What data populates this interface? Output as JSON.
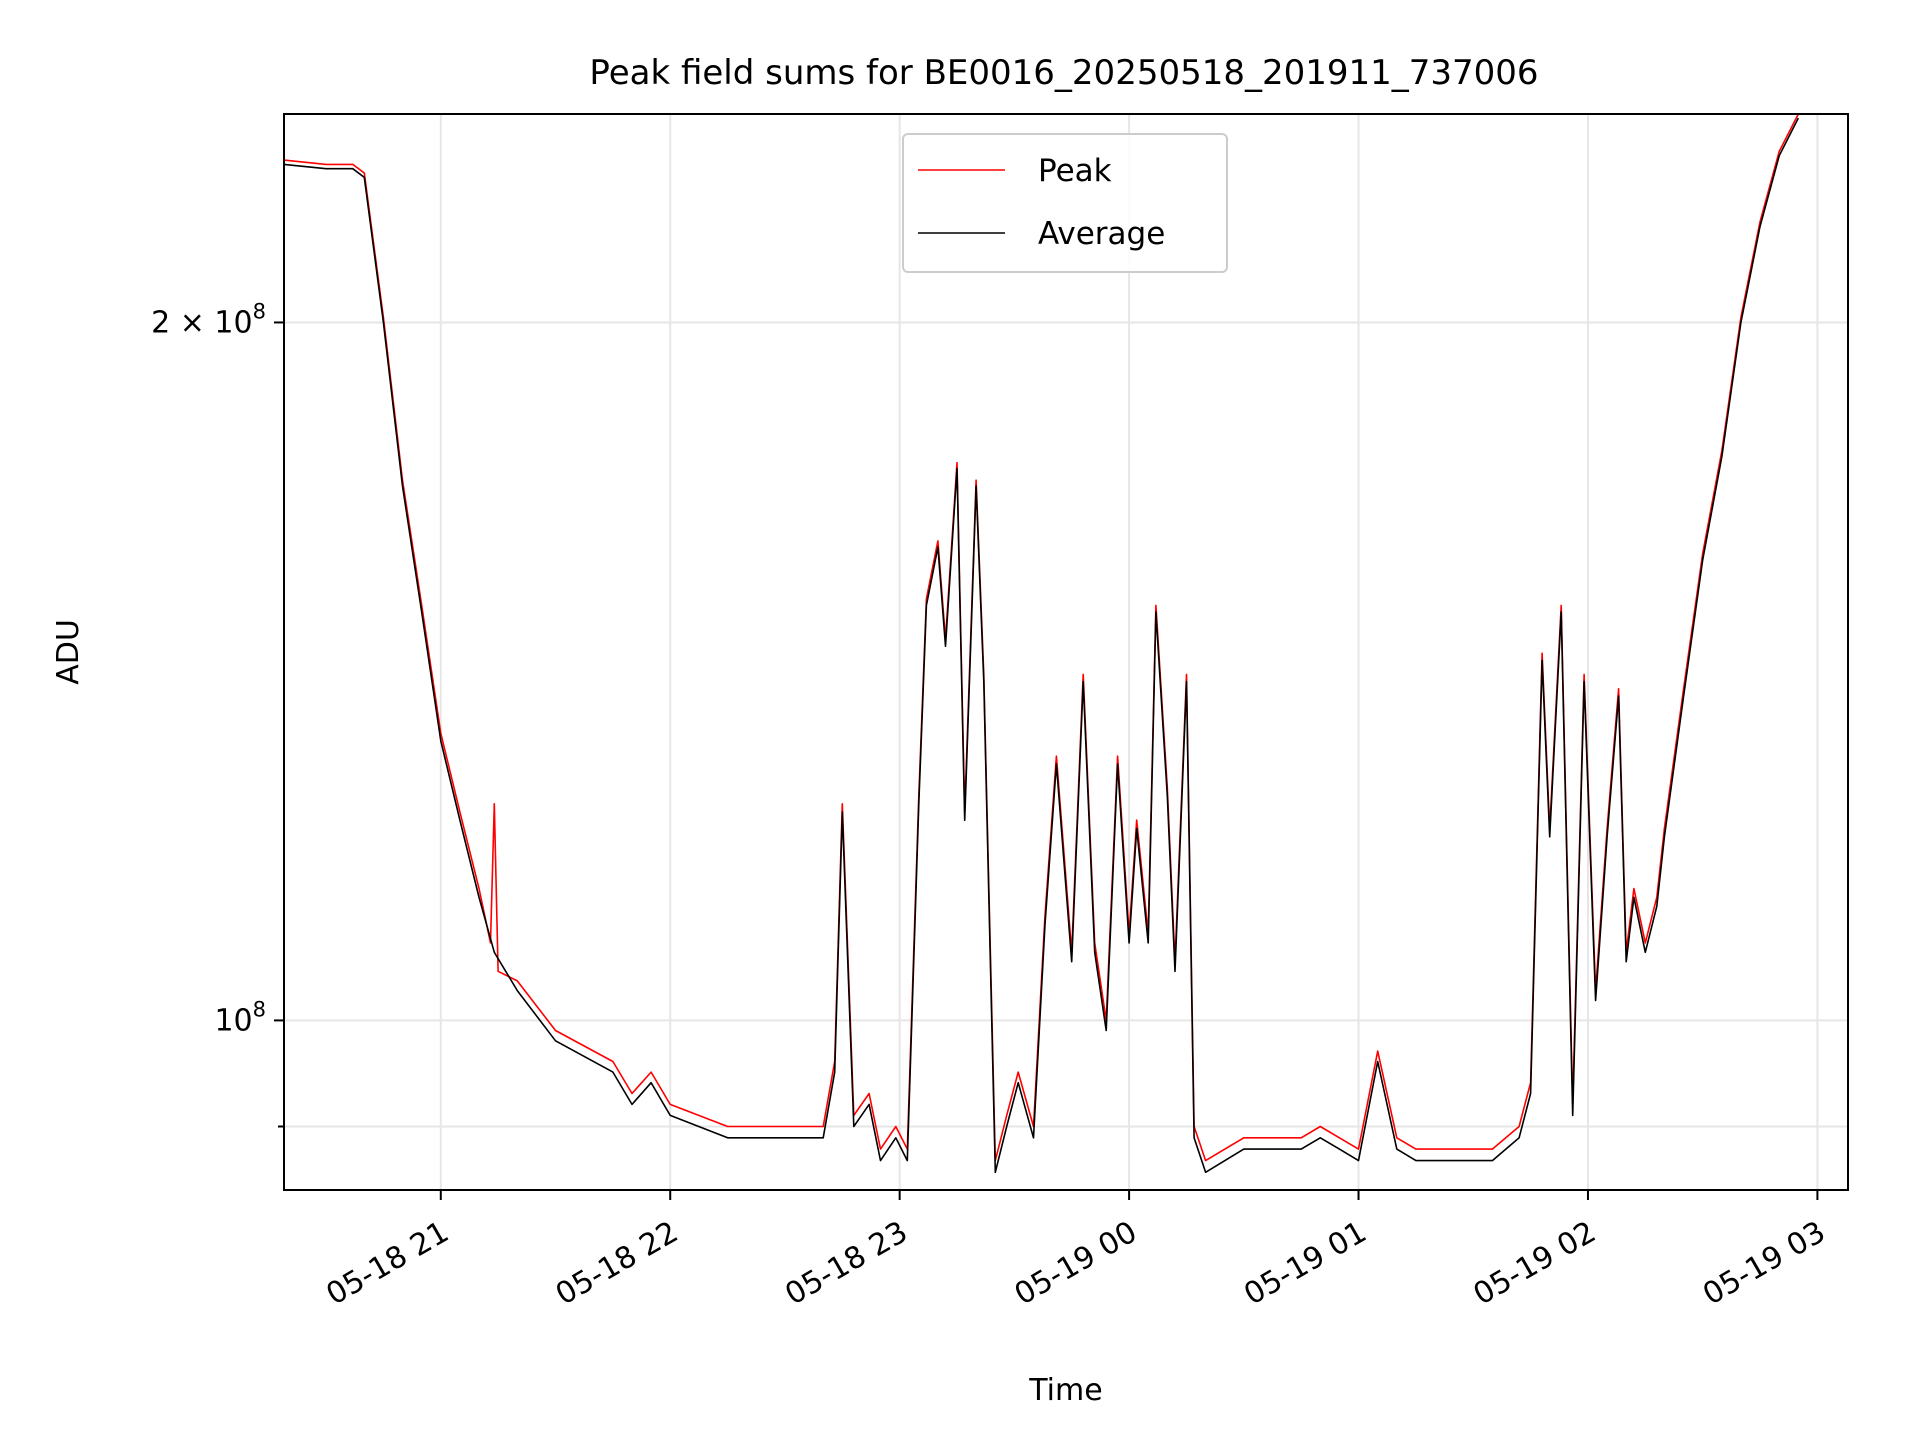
{
  "chart_data": {
    "type": "line",
    "title": "Peak field sums for BE0016_20250518_201911_737006",
    "xlabel": "Time",
    "ylabel": "ADU",
    "y_scale": "log",
    "grid": true,
    "legend_placement": "top-center",
    "xlim": [
      "2025-05-18 20:19",
      "2025-05-19 03:08"
    ],
    "ylim": [
      84500000,
      246000000
    ],
    "x_ticks": [
      {
        "t": "2025-05-18 21:00",
        "label": "05-18 21"
      },
      {
        "t": "2025-05-18 22:00",
        "label": "05-18 22"
      },
      {
        "t": "2025-05-18 23:00",
        "label": "05-18 23"
      },
      {
        "t": "2025-05-19 00:00",
        "label": "05-19 00"
      },
      {
        "t": "2025-05-19 01:00",
        "label": "05-19 01"
      },
      {
        "t": "2025-05-19 02:00",
        "label": "05-19 02"
      },
      {
        "t": "2025-05-19 03:00",
        "label": "05-19 03"
      }
    ],
    "y_ticks": [
      {
        "value": 100000000,
        "base": "10",
        "exp": "8",
        "mant": ""
      },
      {
        "value": 200000000,
        "base": "10",
        "exp": "8",
        "mant": "2 × "
      }
    ],
    "y_minor_ticks": [
      90000000
    ],
    "colors": {
      "peak": "#ff0000",
      "average": "#000000"
    },
    "series": [
      {
        "name": "Average",
        "x": [
          "2025-05-18 20:19",
          "2025-05-18 20:30",
          "2025-05-18 20:37",
          "2025-05-18 20:40",
          "2025-05-18 20:45",
          "2025-05-18 20:50",
          "2025-05-18 20:55",
          "2025-05-18 21:00",
          "2025-05-18 21:05",
          "2025-05-18 21:10",
          "2025-05-18 21:14",
          "2025-05-18 21:20",
          "2025-05-18 21:30",
          "2025-05-18 21:45",
          "2025-05-18 21:50",
          "2025-05-18 21:55",
          "2025-05-18 22:00",
          "2025-05-18 22:15",
          "2025-05-18 22:30",
          "2025-05-18 22:40",
          "2025-05-18 22:43",
          "2025-05-18 22:45",
          "2025-05-18 22:48",
          "2025-05-18 22:52",
          "2025-05-18 22:55",
          "2025-05-18 22:59",
          "2025-05-18 23:02",
          "2025-05-18 23:05",
          "2025-05-18 23:07",
          "2025-05-18 23:10",
          "2025-05-18 23:12",
          "2025-05-18 23:15",
          "2025-05-18 23:17",
          "2025-05-18 23:20",
          "2025-05-18 23:22",
          "2025-05-18 23:25",
          "2025-05-18 23:28",
          "2025-05-18 23:31",
          "2025-05-18 23:35",
          "2025-05-18 23:38",
          "2025-05-18 23:41",
          "2025-05-18 23:45",
          "2025-05-18 23:48",
          "2025-05-18 23:51",
          "2025-05-18 23:54",
          "2025-05-18 23:57",
          "2025-05-19 00:00",
          "2025-05-19 00:02",
          "2025-05-19 00:05",
          "2025-05-19 00:07",
          "2025-05-19 00:10",
          "2025-05-19 00:12",
          "2025-05-19 00:15",
          "2025-05-19 00:17",
          "2025-05-19 00:20",
          "2025-05-19 00:30",
          "2025-05-19 00:45",
          "2025-05-19 00:50",
          "2025-05-19 00:55",
          "2025-05-19 01:00",
          "2025-05-19 01:05",
          "2025-05-19 01:10",
          "2025-05-19 01:15",
          "2025-05-19 01:25",
          "2025-05-19 01:35",
          "2025-05-19 01:42",
          "2025-05-19 01:45",
          "2025-05-19 01:48",
          "2025-05-19 01:50",
          "2025-05-19 01:53",
          "2025-05-19 01:56",
          "2025-05-19 01:59",
          "2025-05-19 02:02",
          "2025-05-19 02:05",
          "2025-05-19 02:08",
          "2025-05-19 02:10",
          "2025-05-19 02:12",
          "2025-05-19 02:15",
          "2025-05-19 02:18",
          "2025-05-19 02:20",
          "2025-05-19 02:25",
          "2025-05-19 02:30",
          "2025-05-19 02:35",
          "2025-05-19 02:40",
          "2025-05-19 02:45",
          "2025-05-19 02:50",
          "2025-05-19 02:55"
        ],
        "values": [
          234000000,
          233000000,
          233000000,
          231000000,
          200000000,
          170000000,
          150000000,
          132000000,
          122000000,
          113000000,
          107000000,
          103000000,
          98000000,
          95000000,
          92000000,
          94000000,
          91000000,
          89000000,
          89000000,
          89000000,
          95000000,
          123000000,
          90000000,
          92000000,
          87000000,
          89000000,
          87000000,
          124000000,
          151000000,
          160000000,
          145000000,
          173000000,
          122000000,
          170000000,
          140000000,
          86000000,
          90000000,
          94000000,
          89000000,
          110000000,
          129000000,
          106000000,
          140000000,
          107000000,
          99000000,
          129000000,
          108000000,
          121000000,
          108000000,
          150000000,
          125000000,
          105000000,
          140000000,
          89000000,
          86000000,
          88000000,
          88000000,
          89000000,
          88000000,
          87000000,
          96000000,
          88000000,
          87000000,
          87000000,
          87000000,
          89000000,
          93000000,
          143000000,
          120000000,
          150000000,
          91000000,
          140000000,
          102000000,
          120000000,
          138000000,
          106000000,
          113000000,
          107000000,
          112000000,
          120000000,
          138000000,
          158000000,
          175000000,
          200000000,
          220000000,
          236000000,
          245000000
        ]
      },
      {
        "name": "Peak",
        "x": [
          "2025-05-18 20:19",
          "2025-05-18 20:30",
          "2025-05-18 20:37",
          "2025-05-18 20:40",
          "2025-05-18 20:45",
          "2025-05-18 20:50",
          "2025-05-18 20:55",
          "2025-05-18 21:00",
          "2025-05-18 21:05",
          "2025-05-18 21:10",
          "2025-05-18 21:13",
          "2025-05-18 21:14",
          "2025-05-18 21:15",
          "2025-05-18 21:20",
          "2025-05-18 21:30",
          "2025-05-18 21:45",
          "2025-05-18 21:50",
          "2025-05-18 21:55",
          "2025-05-18 22:00",
          "2025-05-18 22:15",
          "2025-05-18 22:30",
          "2025-05-18 22:40",
          "2025-05-18 22:43",
          "2025-05-18 22:45",
          "2025-05-18 22:48",
          "2025-05-18 22:52",
          "2025-05-18 22:55",
          "2025-05-18 22:59",
          "2025-05-18 23:02",
          "2025-05-18 23:05",
          "2025-05-18 23:07",
          "2025-05-18 23:10",
          "2025-05-18 23:12",
          "2025-05-18 23:15",
          "2025-05-18 23:17",
          "2025-05-18 23:20",
          "2025-05-18 23:22",
          "2025-05-18 23:25",
          "2025-05-18 23:28",
          "2025-05-18 23:31",
          "2025-05-18 23:35",
          "2025-05-18 23:38",
          "2025-05-18 23:41",
          "2025-05-18 23:45",
          "2025-05-18 23:48",
          "2025-05-18 23:51",
          "2025-05-18 23:54",
          "2025-05-18 23:57",
          "2025-05-19 00:00",
          "2025-05-19 00:02",
          "2025-05-19 00:05",
          "2025-05-19 00:07",
          "2025-05-19 00:10",
          "2025-05-19 00:12",
          "2025-05-19 00:15",
          "2025-05-19 00:17",
          "2025-05-19 00:20",
          "2025-05-19 00:30",
          "2025-05-19 00:45",
          "2025-05-19 00:50",
          "2025-05-19 00:55",
          "2025-05-19 01:00",
          "2025-05-19 01:05",
          "2025-05-19 01:10",
          "2025-05-19 01:15",
          "2025-05-19 01:25",
          "2025-05-19 01:35",
          "2025-05-19 01:42",
          "2025-05-19 01:45",
          "2025-05-19 01:48",
          "2025-05-19 01:50",
          "2025-05-19 01:53",
          "2025-05-19 01:56",
          "2025-05-19 01:59",
          "2025-05-19 02:02",
          "2025-05-19 02:05",
          "2025-05-19 02:08",
          "2025-05-19 02:10",
          "2025-05-19 02:12",
          "2025-05-19 02:15",
          "2025-05-19 02:18",
          "2025-05-19 02:20",
          "2025-05-19 02:25",
          "2025-05-19 02:30",
          "2025-05-19 02:35",
          "2025-05-19 02:40",
          "2025-05-19 02:45",
          "2025-05-19 02:50",
          "2025-05-19 02:55"
        ],
        "values": [
          235000000,
          234000000,
          234000000,
          232000000,
          201000000,
          171000000,
          151000000,
          133000000,
          123000000,
          114000000,
          108000000,
          124000000,
          105000000,
          104000000,
          99000000,
          96000000,
          93000000,
          95000000,
          92000000,
          90000000,
          90000000,
          90000000,
          96000000,
          124000000,
          91000000,
          93000000,
          88000000,
          90000000,
          88000000,
          125000000,
          152000000,
          161000000,
          146000000,
          174000000,
          123000000,
          171000000,
          141000000,
          87000000,
          91000000,
          95000000,
          90000000,
          111000000,
          130000000,
          107000000,
          141000000,
          108000000,
          100000000,
          130000000,
          109000000,
          122000000,
          109000000,
          151000000,
          126000000,
          106000000,
          141000000,
          90000000,
          87000000,
          89000000,
          89000000,
          90000000,
          89000000,
          88000000,
          97000000,
          89000000,
          88000000,
          88000000,
          88000000,
          90000000,
          94000000,
          144000000,
          121000000,
          151000000,
          92000000,
          141000000,
          103000000,
          121000000,
          139000000,
          107000000,
          114000000,
          108000000,
          113000000,
          121000000,
          139000000,
          159000000,
          176000000,
          201000000,
          221000000,
          237000000,
          246000000
        ]
      }
    ]
  }
}
